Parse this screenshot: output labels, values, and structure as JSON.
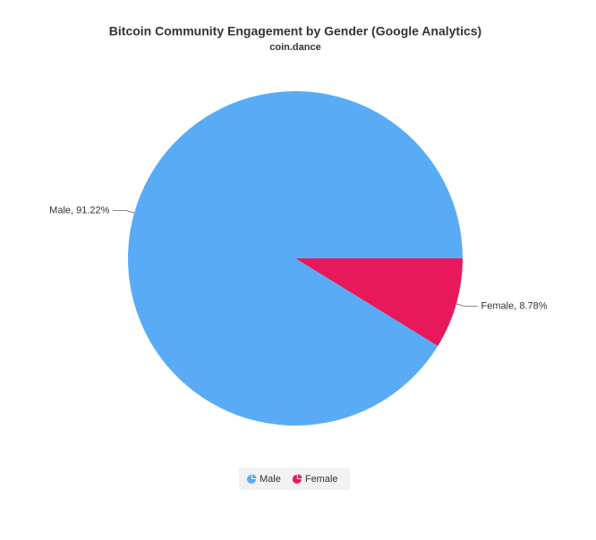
{
  "chart_data": {
    "type": "pie",
    "title": "Bitcoin Community Engagement by Gender (Google Analytics)",
    "subtitle": "coin.dance",
    "categories": [
      "Male",
      "Female"
    ],
    "values": [
      91.22,
      8.78
    ],
    "value_labels": [
      "Male, 91.22%",
      "Female, 8.78%"
    ],
    "colors": [
      "#5aabf6",
      "#e8195a"
    ],
    "legend": "bottom"
  }
}
